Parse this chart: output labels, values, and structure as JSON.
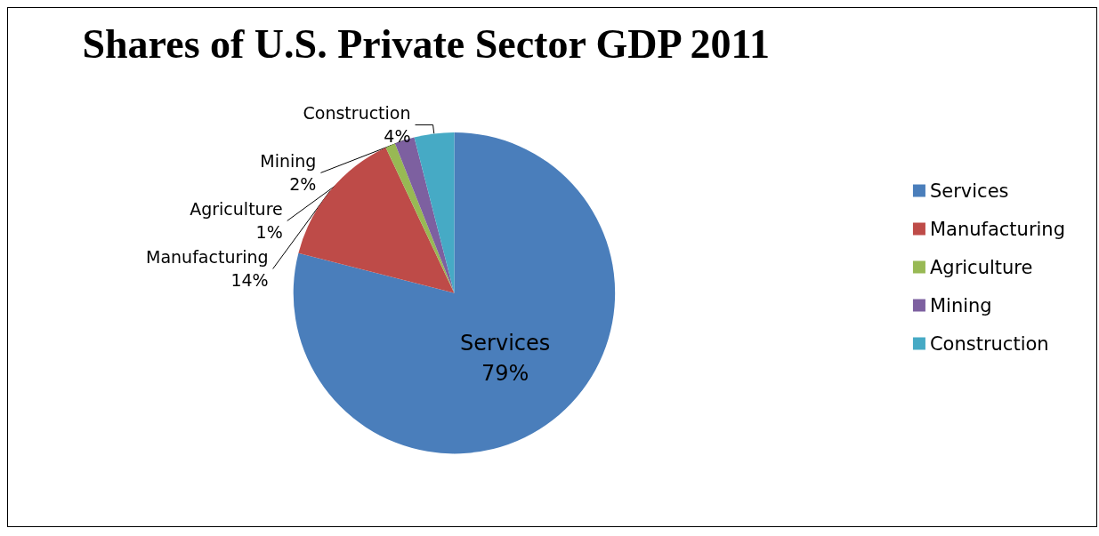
{
  "chart_data": {
    "type": "pie",
    "title": "Shares of U.S. Private Sector GDP 2011",
    "categories": [
      "Services",
      "Manufacturing",
      "Agriculture",
      "Mining",
      "Construction"
    ],
    "values": [
      79,
      14,
      1,
      2,
      4
    ],
    "value_labels": [
      "79%",
      "14%",
      "1%",
      "2%",
      "4%"
    ],
    "colors": [
      "#4a7ebb",
      "#be4b48",
      "#98b954",
      "#7d60a0",
      "#46aac5"
    ],
    "legend": "right"
  }
}
